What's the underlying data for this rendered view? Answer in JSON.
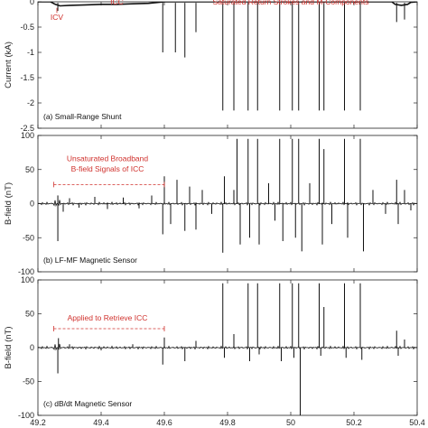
{
  "chart_data": [
    {
      "type": "line",
      "panel_label": "(a) Small-Range Shunt",
      "ylabel": "Current (kA)",
      "xlim": [
        49.2,
        50.4
      ],
      "ylim": [
        -2.5,
        0
      ],
      "x_ticks": [
        "49.2",
        "49.4",
        "49.6",
        "49.8",
        "50",
        "50.2",
        "50.4"
      ],
      "y_ticks": [
        "0",
        "-0.5",
        "-1",
        "-1.5",
        "-2",
        "-2.5"
      ],
      "annotations": [
        {
          "text": "ICV",
          "x": 49.26,
          "y": -0.25
        },
        {
          "text": "ICC",
          "x": 49.45,
          "y": 0.03
        },
        {
          "text": "Saturated Return Strokes and M-Components",
          "x": 50.0,
          "y": 0.03
        }
      ],
      "baseline": [
        [
          49.2,
          0
        ],
        [
          49.24,
          0
        ],
        [
          49.255,
          -0.05
        ],
        [
          49.27,
          -0.08
        ],
        [
          49.3,
          -0.07
        ],
        [
          49.35,
          -0.06
        ],
        [
          49.4,
          -0.05
        ],
        [
          49.45,
          -0.05
        ],
        [
          49.5,
          -0.04
        ],
        [
          49.55,
          -0.03
        ],
        [
          49.6,
          0
        ],
        [
          50.32,
          0
        ],
        [
          50.33,
          -0.05
        ],
        [
          50.35,
          -0.07
        ],
        [
          50.37,
          -0.05
        ],
        [
          50.38,
          -0.01
        ],
        [
          50.4,
          0
        ]
      ],
      "spikes": [
        {
          "x": 49.263,
          "y": -0.18
        },
        {
          "x": 49.595,
          "y": -1.0
        },
        {
          "x": 49.635,
          "y": -1.0
        },
        {
          "x": 49.665,
          "y": -1.1
        },
        {
          "x": 49.7,
          "y": -0.6
        },
        {
          "x": 49.785,
          "y": -2.15
        },
        {
          "x": 49.82,
          "y": -2.15
        },
        {
          "x": 49.865,
          "y": -2.15
        },
        {
          "x": 49.895,
          "y": -2.15
        },
        {
          "x": 49.965,
          "y": -2.15
        },
        {
          "x": 50.005,
          "y": -2.15
        },
        {
          "x": 50.025,
          "y": -2.15
        },
        {
          "x": 50.09,
          "y": -2.15
        },
        {
          "x": 50.105,
          "y": -2.15
        },
        {
          "x": 50.17,
          "y": -2.15
        },
        {
          "x": 50.22,
          "y": -2.15
        },
        {
          "x": 50.335,
          "y": -0.4
        },
        {
          "x": 50.36,
          "y": -0.35
        }
      ]
    },
    {
      "type": "line",
      "panel_label": "(b) LF-MF Magnetic Sensor",
      "ylabel": "B-field (nT)",
      "xlim": [
        49.2,
        50.4
      ],
      "ylim": [
        -100,
        100
      ],
      "x_ticks": [
        "49.2",
        "49.4",
        "49.6",
        "49.8",
        "50",
        "50.2",
        "50.4"
      ],
      "y_ticks": [
        "100",
        "50",
        "0",
        "-50",
        "-100"
      ],
      "annotations": [
        {
          "text": "Unsaturated Broadband",
          "x": 49.42,
          "y": 62
        },
        {
          "text": "B-field Signals of ICC",
          "x": 49.42,
          "y": 47
        }
      ],
      "bracket": {
        "x1": 49.25,
        "x2": 49.6,
        "y": 28
      },
      "spikes": [
        {
          "x": 49.263,
          "y": -55
        },
        {
          "x": 49.263,
          "y": 12
        },
        {
          "x": 49.28,
          "y": -12
        },
        {
          "x": 49.3,
          "y": 8
        },
        {
          "x": 49.33,
          "y": -6
        },
        {
          "x": 49.38,
          "y": 10
        },
        {
          "x": 49.42,
          "y": -8
        },
        {
          "x": 49.47,
          "y": 9
        },
        {
          "x": 49.52,
          "y": -7
        },
        {
          "x": 49.56,
          "y": 12
        },
        {
          "x": 49.595,
          "y": -45
        },
        {
          "x": 49.6,
          "y": 40
        },
        {
          "x": 49.62,
          "y": -30
        },
        {
          "x": 49.64,
          "y": 35
        },
        {
          "x": 49.665,
          "y": -40
        },
        {
          "x": 49.68,
          "y": 25
        },
        {
          "x": 49.7,
          "y": -38
        },
        {
          "x": 49.72,
          "y": 20
        },
        {
          "x": 49.75,
          "y": -15
        },
        {
          "x": 49.785,
          "y": -72
        },
        {
          "x": 49.79,
          "y": 40
        },
        {
          "x": 49.82,
          "y": 20
        },
        {
          "x": 49.83,
          "y": 95
        },
        {
          "x": 49.84,
          "y": -60
        },
        {
          "x": 49.865,
          "y": 95
        },
        {
          "x": 49.87,
          "y": -50
        },
        {
          "x": 49.895,
          "y": 95
        },
        {
          "x": 49.9,
          "y": -60
        },
        {
          "x": 49.93,
          "y": 30
        },
        {
          "x": 49.95,
          "y": -25
        },
        {
          "x": 49.965,
          "y": 95
        },
        {
          "x": 49.975,
          "y": -55
        },
        {
          "x": 50.005,
          "y": 95
        },
        {
          "x": 50.015,
          "y": -50
        },
        {
          "x": 50.025,
          "y": 95
        },
        {
          "x": 50.035,
          "y": -70
        },
        {
          "x": 50.06,
          "y": 30
        },
        {
          "x": 50.09,
          "y": 95
        },
        {
          "x": 50.1,
          "y": -60
        },
        {
          "x": 50.105,
          "y": 80
        },
        {
          "x": 50.13,
          "y": -30
        },
        {
          "x": 50.17,
          "y": 95
        },
        {
          "x": 50.18,
          "y": -50
        },
        {
          "x": 50.22,
          "y": 95
        },
        {
          "x": 50.23,
          "y": -70
        },
        {
          "x": 50.26,
          "y": 20
        },
        {
          "x": 50.3,
          "y": -15
        },
        {
          "x": 50.335,
          "y": 35
        },
        {
          "x": 50.34,
          "y": -30
        },
        {
          "x": 50.36,
          "y": 20
        },
        {
          "x": 50.38,
          "y": -10
        }
      ]
    },
    {
      "type": "line",
      "panel_label": "(c) dB/dt Magnetic Sensor",
      "ylabel": "B-field (nT)",
      "xlim": [
        49.2,
        50.4
      ],
      "ylim": [
        -100,
        100
      ],
      "x_ticks": [
        "49.2",
        "49.4",
        "49.6",
        "49.8",
        "50",
        "50.2",
        "50.4"
      ],
      "y_ticks": [
        "100",
        "50",
        "0",
        "-50",
        "-100"
      ],
      "annotations": [
        {
          "text": "Applied to Retrieve ICC",
          "x": 49.42,
          "y": 40
        }
      ],
      "bracket": {
        "x1": 49.25,
        "x2": 49.6,
        "y": 28
      },
      "spikes": [
        {
          "x": 49.263,
          "y": -38
        },
        {
          "x": 49.265,
          "y": 14
        },
        {
          "x": 49.3,
          "y": 5
        },
        {
          "x": 49.4,
          "y": -4
        },
        {
          "x": 49.5,
          "y": 5
        },
        {
          "x": 49.595,
          "y": -25
        },
        {
          "x": 49.6,
          "y": 15
        },
        {
          "x": 49.665,
          "y": -20
        },
        {
          "x": 49.7,
          "y": 10
        },
        {
          "x": 49.785,
          "y": 95
        },
        {
          "x": 49.79,
          "y": -15
        },
        {
          "x": 49.82,
          "y": 20
        },
        {
          "x": 49.865,
          "y": 95
        },
        {
          "x": 49.87,
          "y": -20
        },
        {
          "x": 49.895,
          "y": 95
        },
        {
          "x": 49.9,
          "y": -10
        },
        {
          "x": 49.965,
          "y": 95
        },
        {
          "x": 49.97,
          "y": -20
        },
        {
          "x": 50.005,
          "y": 95
        },
        {
          "x": 50.01,
          "y": -15
        },
        {
          "x": 50.025,
          "y": 95
        },
        {
          "x": 50.03,
          "y": -100
        },
        {
          "x": 50.09,
          "y": 95
        },
        {
          "x": 50.095,
          "y": -12
        },
        {
          "x": 50.105,
          "y": 60
        },
        {
          "x": 50.17,
          "y": 95
        },
        {
          "x": 50.175,
          "y": -15
        },
        {
          "x": 50.22,
          "y": 95
        },
        {
          "x": 50.225,
          "y": -18
        },
        {
          "x": 50.335,
          "y": 25
        },
        {
          "x": 50.34,
          "y": -12
        },
        {
          "x": 50.36,
          "y": 12
        }
      ]
    }
  ]
}
